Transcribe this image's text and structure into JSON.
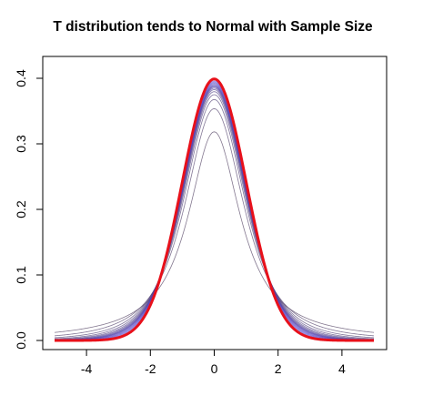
{
  "chart_data": {
    "type": "line",
    "title": "T distribution tends to Normal with Sample Size",
    "xlabel": "",
    "ylabel": "",
    "xlim": [
      -5,
      5
    ],
    "ylim": [
      0,
      0.4
    ],
    "x_ticks": [
      "-4",
      "-2",
      "0",
      "2",
      "4"
    ],
    "x_tick_values": [
      -4,
      -2,
      0,
      2,
      4
    ],
    "y_ticks": [
      "0.0",
      "0.1",
      "0.2",
      "0.3",
      "0.4"
    ],
    "y_tick_values": [
      0,
      0.1,
      0.2,
      0.3,
      0.4
    ],
    "grid": false,
    "legend": "none",
    "x_range": [
      -5,
      5
    ],
    "t_degrees_of_freedom": [
      1,
      2,
      3,
      4,
      5,
      6,
      7,
      8,
      9,
      10,
      12,
      15,
      20,
      30
    ],
    "t_curve_color_start": "#5a4a6a",
    "t_curve_color_end": "#4a3ad0",
    "normal_curve": {
      "name": "normal",
      "color": "#e8101a"
    }
  }
}
